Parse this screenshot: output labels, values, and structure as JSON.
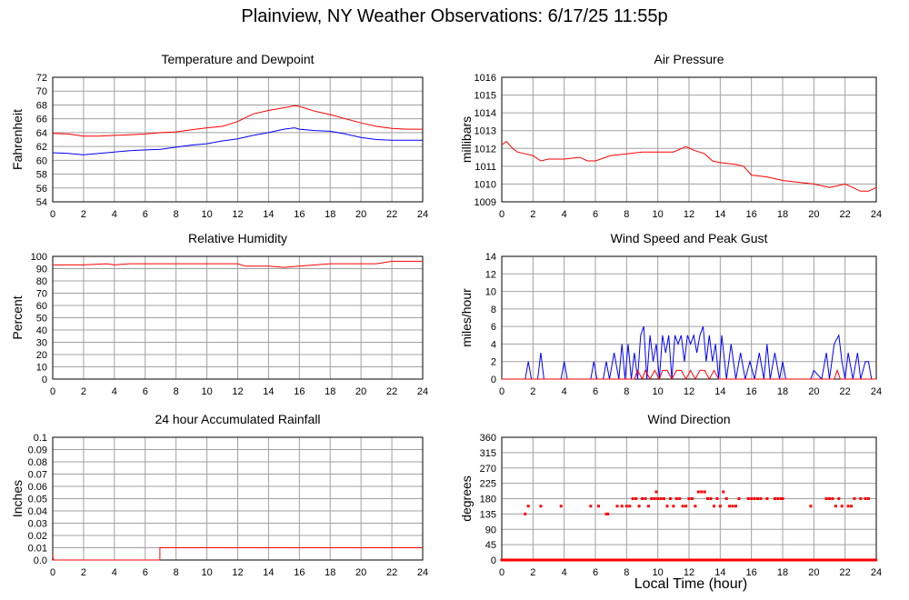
{
  "page": {
    "title": "Plainview, NY Weather Observations: 6/17/25 11:55p",
    "xaxis_title": "Local Time (hour)"
  },
  "colors": {
    "red": "#ff0000",
    "blue": "#0000ff",
    "grid": "#a0a0a0",
    "frame": "#000000"
  },
  "chart_data": [
    {
      "id": "temp",
      "type": "line",
      "title": "Temperature and Dewpoint",
      "ylabel": "Fahrenheit",
      "xlabel": "",
      "xlim": [
        0,
        24
      ],
      "ylim": [
        54,
        72
      ],
      "xticks": [
        0,
        2,
        4,
        6,
        8,
        10,
        12,
        14,
        16,
        18,
        20,
        22,
        24
      ],
      "yticks": [
        54,
        56,
        58,
        60,
        62,
        64,
        66,
        68,
        70,
        72
      ],
      "grid": true,
      "series": [
        {
          "color": "#ff0000",
          "x": [
            0,
            1,
            2,
            3,
            4,
            5,
            6,
            7,
            8,
            9,
            10,
            11,
            12,
            13,
            14,
            15,
            15.7,
            16,
            17,
            18,
            19,
            20,
            21,
            22,
            23,
            24
          ],
          "y": [
            63.9,
            63.8,
            63.5,
            63.5,
            63.6,
            63.7,
            63.8,
            64.0,
            64.1,
            64.4,
            64.7,
            64.9,
            65.6,
            66.7,
            67.2,
            67.6,
            67.9,
            67.8,
            67.1,
            66.6,
            66.0,
            65.4,
            64.9,
            64.6,
            64.5,
            64.5
          ]
        },
        {
          "color": "#0000ff",
          "x": [
            0,
            1,
            2,
            3,
            4,
            5,
            6,
            7,
            8,
            9,
            10,
            11,
            12,
            13,
            14,
            15,
            15.7,
            16,
            17,
            18,
            19,
            20,
            21,
            22,
            23,
            24
          ],
          "y": [
            61.1,
            61.0,
            60.8,
            61.0,
            61.2,
            61.4,
            61.5,
            61.6,
            61.9,
            62.2,
            62.4,
            62.8,
            63.1,
            63.6,
            64.0,
            64.5,
            64.7,
            64.5,
            64.3,
            64.2,
            63.8,
            63.3,
            63.0,
            62.9,
            62.9,
            62.9
          ]
        }
      ]
    },
    {
      "id": "press",
      "type": "line",
      "title": "Air Pressure",
      "ylabel": "millibars",
      "xlabel": "",
      "xlim": [
        0,
        24
      ],
      "ylim": [
        1009,
        1016
      ],
      "xticks": [
        0,
        2,
        4,
        6,
        8,
        10,
        12,
        14,
        16,
        18,
        20,
        22,
        24
      ],
      "yticks": [
        1009,
        1010,
        1011,
        1012,
        1013,
        1014,
        1015,
        1016
      ],
      "grid": true,
      "series": [
        {
          "color": "#ff0000",
          "x": [
            0,
            0.3,
            0.7,
            1,
            1.5,
            2,
            2.5,
            3,
            4,
            5,
            5.5,
            6,
            7,
            8,
            9,
            10,
            11,
            11.8,
            12.3,
            13,
            13.5,
            14,
            15,
            15.5,
            16,
            17,
            18,
            19,
            20,
            20.5,
            21,
            21.5,
            22,
            22.5,
            23,
            23.5,
            24
          ],
          "y": [
            1012.2,
            1012.4,
            1012.0,
            1011.8,
            1011.7,
            1011.6,
            1011.3,
            1011.4,
            1011.4,
            1011.5,
            1011.3,
            1011.3,
            1011.6,
            1011.7,
            1011.8,
            1011.8,
            1011.8,
            1012.1,
            1011.9,
            1011.7,
            1011.3,
            1011.2,
            1011.1,
            1011.0,
            1010.5,
            1010.4,
            1010.2,
            1010.1,
            1010.0,
            1009.9,
            1009.8,
            1009.9,
            1010.0,
            1009.8,
            1009.6,
            1009.6,
            1009.8
          ]
        }
      ]
    },
    {
      "id": "rh",
      "type": "line",
      "title": "Relative Humidity",
      "ylabel": "Percent",
      "xlabel": "",
      "xlim": [
        0,
        24
      ],
      "ylim": [
        0,
        100
      ],
      "xticks": [
        0,
        2,
        4,
        6,
        8,
        10,
        12,
        14,
        16,
        18,
        20,
        22,
        24
      ],
      "yticks": [
        0,
        10,
        20,
        30,
        40,
        50,
        60,
        70,
        80,
        90,
        100
      ],
      "grid": true,
      "series": [
        {
          "color": "#ff0000",
          "x": [
            0,
            2,
            3.5,
            4,
            5,
            6,
            8,
            10,
            12,
            12.5,
            13,
            14,
            15,
            16,
            17,
            18,
            19,
            20,
            21,
            22,
            23,
            24
          ],
          "y": [
            93,
            93,
            94,
            93,
            94,
            94,
            94,
            94,
            94,
            92,
            92,
            92,
            91,
            92,
            93,
            94,
            94,
            94,
            94,
            96,
            96,
            96
          ]
        }
      ]
    },
    {
      "id": "wind",
      "type": "line",
      "title": "Wind Speed and Peak Gust",
      "ylabel": "miles/hour",
      "xlabel": "",
      "xlim": [
        0,
        24
      ],
      "ylim": [
        0,
        14
      ],
      "xticks": [
        0,
        2,
        4,
        6,
        8,
        10,
        12,
        14,
        16,
        18,
        20,
        22,
        24
      ],
      "yticks": [
        0,
        2,
        4,
        6,
        8,
        10,
        12,
        14
      ],
      "grid": true,
      "series": [
        {
          "color": "#0000ff",
          "x": [
            0,
            1.5,
            1.7,
            1.9,
            2.3,
            2.5,
            2.7,
            3.8,
            4.0,
            4.2,
            5.7,
            5.9,
            6.1,
            6.5,
            6.7,
            6.9,
            7.2,
            7.5,
            7.7,
            7.9,
            8.1,
            8.3,
            8.5,
            8.7,
            8.9,
            9.1,
            9.3,
            9.5,
            9.7,
            9.9,
            10.1,
            10.3,
            10.5,
            10.7,
            10.9,
            11.1,
            11.3,
            11.5,
            11.7,
            11.9,
            12.1,
            12.3,
            12.5,
            12.7,
            12.9,
            13.1,
            13.3,
            13.5,
            13.7,
            13.9,
            14.1,
            14.4,
            14.7,
            15.0,
            15.3,
            15.6,
            15.9,
            16.2,
            16.5,
            16.8,
            17.0,
            17.2,
            17.5,
            17.8,
            18.0,
            18.2,
            19.8,
            20.0,
            20.5,
            20.8,
            21.0,
            21.3,
            21.6,
            21.8,
            22.0,
            22.2,
            22.5,
            22.8,
            23.0,
            23.3,
            23.5,
            23.7
          ],
          "y": [
            0,
            0,
            2,
            0,
            0,
            3,
            0,
            0,
            2,
            0,
            0,
            2,
            0,
            0,
            2,
            0,
            3,
            0,
            4,
            0,
            4,
            0,
            3,
            0,
            5,
            6,
            0,
            5,
            2,
            4,
            0,
            5,
            3,
            5,
            0,
            5,
            4,
            5,
            2,
            5,
            4,
            5,
            3,
            5,
            6,
            2,
            5,
            2,
            4,
            0,
            5,
            0,
            4,
            0,
            3,
            0,
            2,
            0,
            3,
            0,
            4,
            0,
            3,
            0,
            2,
            0,
            0,
            1,
            0,
            3,
            0,
            4,
            5,
            2,
            0,
            3,
            0,
            3,
            0,
            2,
            2,
            0
          ]
        },
        {
          "color": "#ff0000",
          "x": [
            0,
            8.5,
            8.7,
            9.0,
            9.2,
            9.5,
            9.8,
            10.1,
            10.3,
            10.6,
            10.9,
            11.2,
            11.5,
            11.8,
            12.1,
            12.4,
            12.7,
            13.0,
            13.3,
            13.6,
            13.9,
            14.2,
            21.3,
            21.5,
            21.7,
            24
          ],
          "y": [
            0,
            0,
            1,
            0,
            1,
            0,
            1,
            0,
            1,
            1,
            0,
            1,
            1,
            0,
            1,
            0,
            1,
            1,
            0,
            1,
            0,
            0,
            0,
            1,
            0,
            0
          ]
        }
      ]
    },
    {
      "id": "rain",
      "type": "line",
      "title": "24 hour Accumulated Rainfall",
      "ylabel": "Inches",
      "xlabel": "",
      "xlim": [
        0,
        24
      ],
      "ylim": [
        0,
        0.1
      ],
      "xticks": [
        0,
        2,
        4,
        6,
        8,
        10,
        12,
        14,
        16,
        18,
        20,
        22,
        24
      ],
      "yticks": [
        0.0,
        0.01,
        0.02,
        0.03,
        0.04,
        0.05,
        0.06,
        0.07,
        0.08,
        0.09,
        0.1
      ],
      "ytick_labels": [
        "0.0",
        "0.01",
        "0.02",
        "0.03",
        "0.04",
        "0.05",
        "0.06",
        "0.07",
        "0.08",
        "0.09",
        "0.1"
      ],
      "grid": true,
      "series": [
        {
          "color": "#ff0000",
          "x": [
            0,
            0.05,
            6.95,
            6.95,
            24
          ],
          "y": [
            0.004,
            0,
            0,
            0.01,
            0.01
          ]
        }
      ]
    },
    {
      "id": "dir",
      "type": "scatter",
      "title": "Wind Direction",
      "ylabel": "degrees",
      "xlabel": "Local Time (hour)",
      "xlim": [
        0,
        24
      ],
      "ylim": [
        0,
        360
      ],
      "xticks": [
        0,
        2,
        4,
        6,
        8,
        10,
        12,
        14,
        16,
        18,
        20,
        22,
        24
      ],
      "yticks": [
        0,
        45,
        90,
        135,
        180,
        225,
        270,
        315,
        360
      ],
      "grid": true,
      "series": [
        {
          "color": "#ff0000",
          "x": [
            1.5,
            1.7,
            2.5,
            3.8,
            5.7,
            6.2,
            6.7,
            6.8,
            7.4,
            7.7,
            8.0,
            8.2,
            8.4,
            8.6,
            8.8,
            9.0,
            9.2,
            9.4,
            9.6,
            9.8,
            9.9,
            10.0,
            10.2,
            10.4,
            10.6,
            10.8,
            11.0,
            11.2,
            11.4,
            11.6,
            11.8,
            12.0,
            12.2,
            12.4,
            12.6,
            12.8,
            13.0,
            13.2,
            13.4,
            13.6,
            13.8,
            14.0,
            14.2,
            14.4,
            14.6,
            14.8,
            15.0,
            15.2,
            15.8,
            16.0,
            16.2,
            16.4,
            16.6,
            17.0,
            17.5,
            17.7,
            17.9,
            18.0,
            19.8,
            20.8,
            21.0,
            21.2,
            21.4,
            21.6,
            21.8,
            22.2,
            22.4,
            22.6,
            23.0,
            23.3,
            23.5
          ],
          "y": [
            135,
            158,
            158,
            158,
            158,
            158,
            135,
            135,
            158,
            158,
            158,
            158,
            180,
            180,
            158,
            180,
            180,
            158,
            180,
            180,
            200,
            180,
            180,
            180,
            158,
            180,
            158,
            180,
            180,
            158,
            158,
            180,
            180,
            158,
            200,
            200,
            200,
            180,
            180,
            158,
            180,
            158,
            200,
            180,
            158,
            158,
            158,
            180,
            180,
            180,
            180,
            180,
            180,
            180,
            180,
            180,
            180,
            180,
            158,
            180,
            180,
            180,
            158,
            180,
            158,
            158,
            158,
            180,
            180,
            180,
            180
          ]
        }
      ]
    }
  ]
}
